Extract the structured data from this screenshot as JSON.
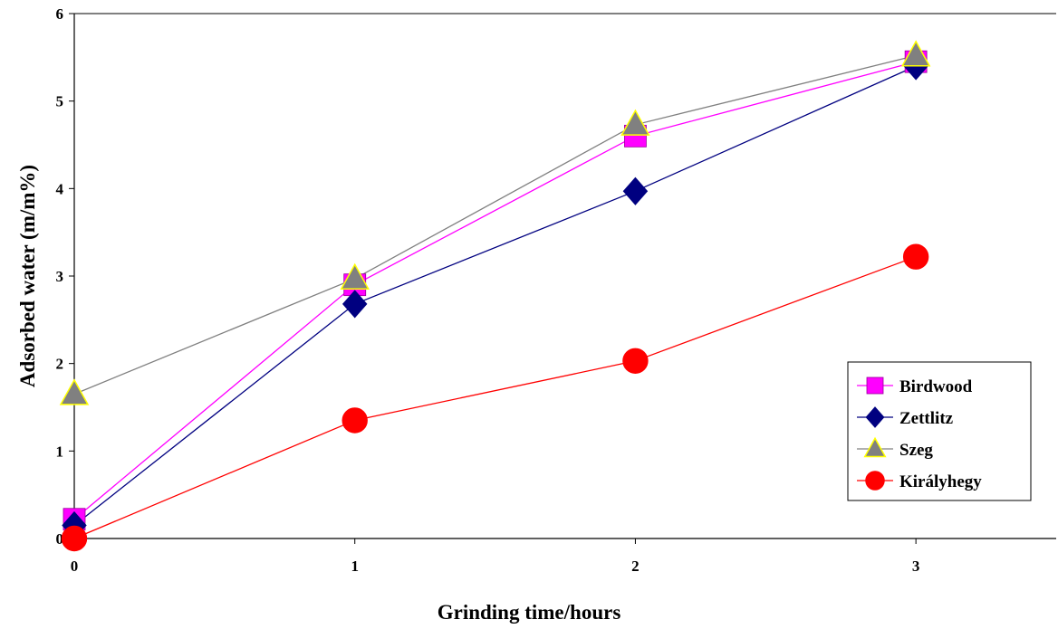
{
  "chart_data": {
    "type": "line",
    "xlabel": "Grinding time/hours",
    "ylabel": "Adsorbed water (m/m%)",
    "x": [
      0,
      1,
      2,
      3
    ],
    "xlim": [
      0,
      3.5
    ],
    "ylim": [
      0,
      6
    ],
    "xticks": [
      0,
      1,
      2,
      3
    ],
    "yticks": [
      0,
      1,
      2,
      3,
      4,
      5,
      6
    ],
    "grid": false,
    "legend_position": "bottom-right",
    "series": [
      {
        "name": "Birdwood",
        "values": [
          0.22,
          2.9,
          4.6,
          5.45
        ],
        "color": "#ff00ff",
        "marker": "square",
        "marker_color": "#ff00ff"
      },
      {
        "name": "Zettlitz",
        "values": [
          0.15,
          2.68,
          3.97,
          5.4
        ],
        "color": "#000080",
        "marker": "diamond",
        "marker_color": "#000080"
      },
      {
        "name": "Szeg",
        "values": [
          1.65,
          2.97,
          4.73,
          5.52
        ],
        "color": "#808080",
        "marker": "triangle",
        "marker_color": "#808080"
      },
      {
        "name": "Királyhegy",
        "values": [
          0.0,
          1.35,
          2.03,
          3.22
        ],
        "color": "#ff0000",
        "marker": "circle",
        "marker_color": "#ff0000"
      }
    ]
  }
}
